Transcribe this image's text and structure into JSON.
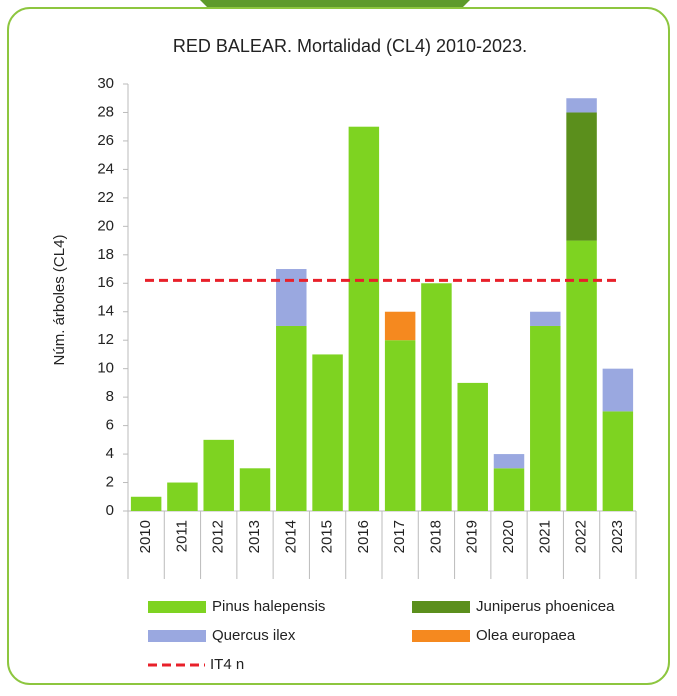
{
  "chart_data": {
    "type": "stacked_bar",
    "title": "RED BALEAR. Mortalidad (CL4) 2010-2023.",
    "y_label": "Núm. árboles (CL4)",
    "categories": [
      "2010",
      "2011",
      "2012",
      "2013",
      "2014",
      "2015",
      "2016",
      "2017",
      "2018",
      "2019",
      "2020",
      "2021",
      "2022",
      "2023"
    ],
    "series": [
      {
        "name": "Pinus halepensis",
        "color": "#7ed321",
        "values": [
          1,
          2,
          5,
          3,
          13,
          11,
          27,
          12,
          16,
          9,
          3,
          13,
          19,
          7
        ]
      },
      {
        "name": "Juniperus phoenicea",
        "color": "#5b8f1c",
        "values": [
          0,
          0,
          0,
          0,
          0,
          0,
          0,
          0,
          0,
          0,
          0,
          0,
          9,
          0
        ]
      },
      {
        "name": "Quercus ilex",
        "color": "#9aa8e0",
        "values": [
          0,
          0,
          0,
          0,
          4,
          0,
          0,
          0,
          0,
          0,
          1,
          1,
          1,
          3
        ]
      },
      {
        "name": "Olea europaea",
        "color": "#f5891f",
        "values": [
          0,
          0,
          0,
          0,
          0,
          0,
          0,
          2,
          0,
          0,
          0,
          0,
          0,
          0
        ]
      }
    ],
    "reference_line": {
      "name": "IT4 n",
      "color": "#e8202a",
      "value": 16.2
    },
    "ylim": [
      0,
      30
    ],
    "yticks": [
      0,
      2,
      4,
      6,
      8,
      10,
      12,
      14,
      16,
      18,
      20,
      22,
      24,
      26,
      28,
      30
    ]
  }
}
